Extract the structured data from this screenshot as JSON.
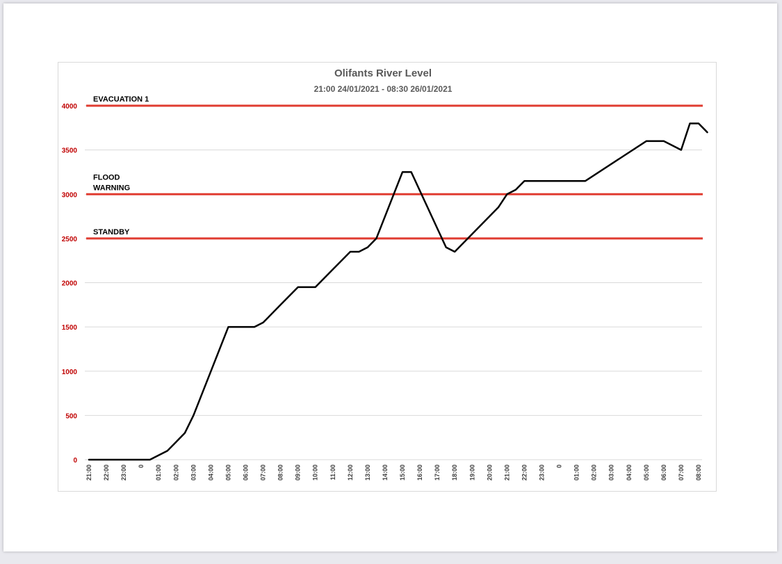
{
  "chart_data": {
    "type": "line",
    "title": "Olifants River Level",
    "subtitle": "21:00 24/01/2021 - 08:30 26/01/2021",
    "xlabel": "",
    "ylabel": "",
    "ylim": [
      0,
      4000
    ],
    "y_ticks": [
      0,
      500,
      1000,
      1500,
      2000,
      2500,
      3000,
      3500,
      4000
    ],
    "grid": true,
    "legend": "none",
    "categories": [
      "21:00",
      "22:00",
      "23:00",
      "0",
      "01:00",
      "02:00",
      "03:00",
      "04:00",
      "05:00",
      "06:00",
      "07:00",
      "08:00",
      "09:00",
      "10:00",
      "11:00",
      "12:00",
      "13:00",
      "14:00",
      "15:00",
      "16:00",
      "17:00",
      "18:00",
      "19:00",
      "20:00",
      "21:00",
      "22:00",
      "23:00",
      "0",
      "01:00",
      "02:00",
      "03:00",
      "04:00",
      "05:00",
      "06:00",
      "07:00",
      "08:00"
    ],
    "series": [
      {
        "color": "#000000",
        "points": [
          [
            0,
            0
          ],
          [
            1,
            0
          ],
          [
            2,
            0
          ],
          [
            3,
            0
          ],
          [
            3.5,
            0
          ],
          [
            4.5,
            100
          ],
          [
            5.5,
            300
          ],
          [
            6,
            500
          ],
          [
            7,
            1000
          ],
          [
            8,
            1500
          ],
          [
            9,
            1500
          ],
          [
            9.5,
            1500
          ],
          [
            10,
            1550
          ],
          [
            11,
            1750
          ],
          [
            12,
            1950
          ],
          [
            13,
            1950
          ],
          [
            14,
            2150
          ],
          [
            15,
            2350
          ],
          [
            15.5,
            2350
          ],
          [
            16,
            2400
          ],
          [
            16.5,
            2500
          ],
          [
            18,
            3250
          ],
          [
            18.5,
            3250
          ],
          [
            20.5,
            2400
          ],
          [
            21,
            2350
          ],
          [
            23.5,
            2850
          ],
          [
            24,
            3000
          ],
          [
            24.5,
            3050
          ],
          [
            25,
            3150
          ],
          [
            26.5,
            3150
          ],
          [
            27.5,
            3150
          ],
          [
            28.5,
            3150
          ],
          [
            32,
            3600
          ],
          [
            33,
            3600
          ],
          [
            34,
            3500
          ],
          [
            34.5,
            3800
          ],
          [
            35,
            3800
          ],
          [
            35.5,
            3700
          ]
        ]
      }
    ],
    "thresholds": [
      {
        "label": "EVACUATION 1",
        "value": 4000,
        "color": "#e03c31"
      },
      {
        "label": "FLOOD WARNING",
        "label_lines": [
          "FLOOD",
          "WARNING"
        ],
        "value": 3000,
        "color": "#e03c31"
      },
      {
        "label": "STANDBY",
        "value": 2500,
        "color": "#e03c31"
      }
    ]
  }
}
